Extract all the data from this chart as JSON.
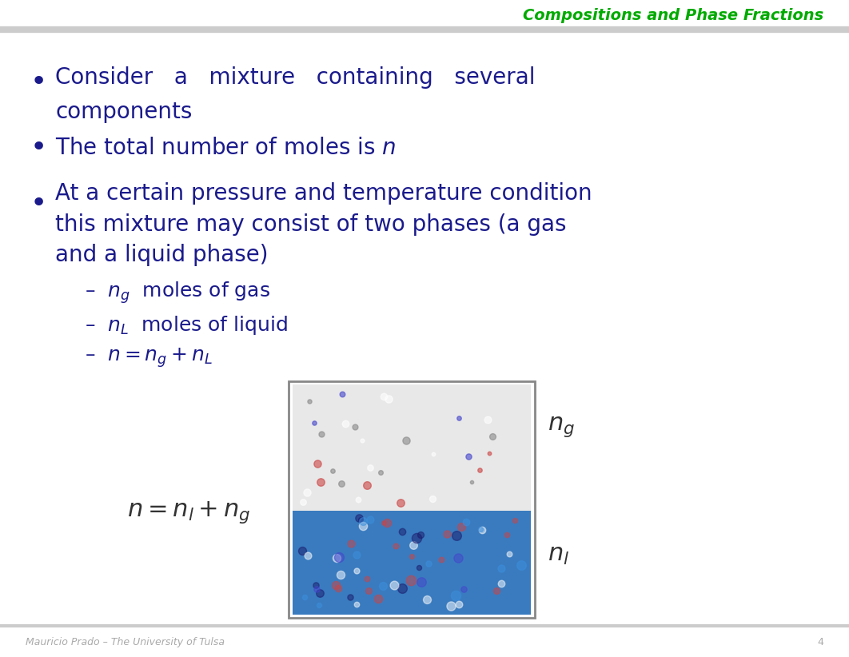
{
  "title": "Compositions and Phase Fractions",
  "title_color": "#00AA00",
  "bg_color": "#FFFFFF",
  "text_color": "#1A1A8C",
  "bullet_color": "#1A1A8C",
  "footer_text": "Mauricio Prado – The University of Tulsa",
  "footer_page": "4",
  "footer_color": "#AAAAAA",
  "header_line_color": "#CCCCCC",
  "footer_line_color": "#CCCCCC",
  "bullets": [
    "Consider  a  mixture  containing  several\n  components",
    "The total number of moles is $n$",
    "At a certain pressure and temperature condition\n  this mixture may consist of two phases (a gas\n  and a liquid phase)"
  ],
  "sub_bullets": [
    "–  $n_g$  moles of gas",
    "–  $n_L$  moles of liquid",
    "–  $n = n_g + n_L$"
  ]
}
